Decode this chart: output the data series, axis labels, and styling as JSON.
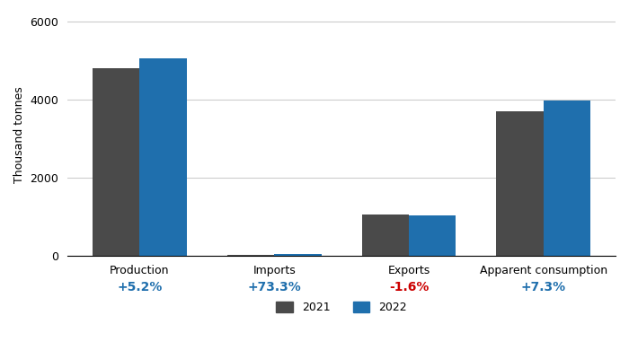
{
  "categories": [
    "Production",
    "Imports",
    "Exports",
    "Apparent consumption"
  ],
  "values_2021": [
    4800,
    30,
    1050,
    3700
  ],
  "values_2022": [
    5050,
    52,
    1033,
    3970
  ],
  "pct_changes": [
    "+5.2%",
    "+73.3%",
    "-1.6%",
    "+7.3%"
  ],
  "pct_colors": [
    "#1f6fad",
    "#1f6fad",
    "#cc0000",
    "#1f6fad"
  ],
  "color_2021": "#4a4a4a",
  "color_2022": "#1f6fad",
  "ylabel": "Thousand tonnes",
  "ylim": [
    0,
    6200
  ],
  "yticks": [
    0,
    2000,
    4000,
    6000
  ],
  "legend_2021": "2021",
  "legend_2022": "2022",
  "bar_width": 0.35,
  "background_color": "#ffffff",
  "grid_color": "#cccccc",
  "title_fontsize": 10,
  "axis_fontsize": 9,
  "pct_fontsize": 10
}
